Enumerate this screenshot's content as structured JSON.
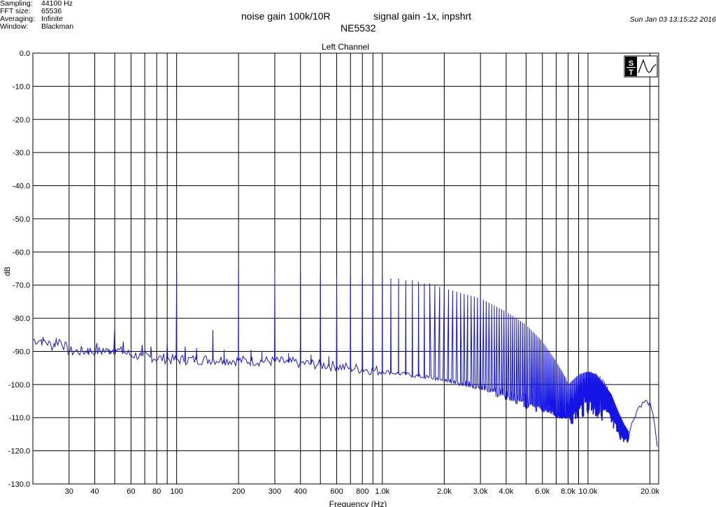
{
  "header": {
    "info": [
      {
        "key": "Sampling:",
        "value": "44100 Hz"
      },
      {
        "key": "FFT size:",
        "value": "65536"
      },
      {
        "key": "Averaging:",
        "value": "Infinite"
      },
      {
        "key": "Window:",
        "value": "Blackman"
      }
    ],
    "title_left": "noise gain 100k/10R",
    "title_center": "NE5532",
    "title_right": "signal gain -1x, inpshrt",
    "timestamp": "Sun Jan 03 13:15:22 2016"
  },
  "colors": {
    "trace": "#1414e6",
    "grid": "#000000",
    "background": "#ffffff"
  },
  "logo": {
    "letters": "S T",
    "icon": "st-logo-icon"
  },
  "chart_data": {
    "type": "line",
    "title": "Left Channel",
    "xlabel": "Frequency (Hz)",
    "ylabel": "dB",
    "xscale": "log",
    "xlim": [
      20,
      22050
    ],
    "ylim": [
      -130,
      0
    ],
    "grid": true,
    "yticks": [
      {
        "value": 0,
        "label": "0.0"
      },
      {
        "value": -10,
        "label": "-10.0"
      },
      {
        "value": -20,
        "label": "-20.0"
      },
      {
        "value": -30,
        "label": "-30.0"
      },
      {
        "value": -40,
        "label": "-40.0"
      },
      {
        "value": -50,
        "label": "-50.0"
      },
      {
        "value": -60,
        "label": "-60.0"
      },
      {
        "value": -70,
        "label": "-70.0"
      },
      {
        "value": -80,
        "label": "-80.0"
      },
      {
        "value": -90,
        "label": "-90.0"
      },
      {
        "value": -100,
        "label": "-100.0"
      },
      {
        "value": -110,
        "label": "-110.0"
      },
      {
        "value": -120,
        "label": "-120.0"
      },
      {
        "value": -130,
        "label": "-130.0"
      }
    ],
    "xticks": [
      {
        "value": 30,
        "label": "30"
      },
      {
        "value": 40,
        "label": "40"
      },
      {
        "value": 60,
        "label": "60"
      },
      {
        "value": 80,
        "label": "80"
      },
      {
        "value": 100,
        "label": "100"
      },
      {
        "value": 200,
        "label": "200"
      },
      {
        "value": 300,
        "label": "300"
      },
      {
        "value": 400,
        "label": "400"
      },
      {
        "value": 600,
        "label": "600"
      },
      {
        "value": 800,
        "label": "800"
      },
      {
        "value": 1000,
        "label": "1.0k"
      },
      {
        "value": 2000,
        "label": "2.0k"
      },
      {
        "value": 3000,
        "label": "3.0k"
      },
      {
        "value": 4000,
        "label": "4.0k"
      },
      {
        "value": 6000,
        "label": "6.0k"
      },
      {
        "value": 8000,
        "label": "8.0k"
      },
      {
        "value": 10000,
        "label": "10.0k"
      },
      {
        "value": 20000,
        "label": "20.0k"
      }
    ],
    "xgrid": [
      20,
      30,
      40,
      50,
      60,
      70,
      80,
      90,
      100,
      200,
      300,
      400,
      500,
      600,
      700,
      800,
      900,
      1000,
      2000,
      3000,
      4000,
      5000,
      6000,
      7000,
      8000,
      9000,
      10000,
      20000
    ],
    "series": [
      {
        "baseline": [
          [
            20,
            -86.5
          ],
          [
            23,
            -87
          ],
          [
            25,
            -88.5
          ],
          [
            27,
            -86.5
          ],
          [
            30,
            -90
          ],
          [
            35,
            -90
          ],
          [
            40,
            -90
          ],
          [
            45,
            -90
          ],
          [
            50,
            -89.5
          ],
          [
            60,
            -91
          ],
          [
            70,
            -91.5
          ],
          [
            80,
            -92
          ],
          [
            100,
            -92.5
          ],
          [
            150,
            -92.5
          ],
          [
            200,
            -92.8
          ],
          [
            300,
            -93
          ],
          [
            400,
            -93.5
          ],
          [
            500,
            -94
          ],
          [
            600,
            -94.5
          ],
          [
            700,
            -95
          ],
          [
            800,
            -95.3
          ],
          [
            1000,
            -96
          ],
          [
            1500,
            -97.5
          ],
          [
            2000,
            -98.5
          ],
          [
            3000,
            -100
          ],
          [
            4000,
            -101.5
          ],
          [
            5000,
            -103.5
          ],
          [
            6000,
            -105.5
          ],
          [
            7000,
            -107.5
          ],
          [
            7800,
            -109
          ],
          [
            8000,
            -106
          ],
          [
            9000,
            -100
          ],
          [
            10000,
            -96.5
          ],
          [
            11000,
            -97
          ],
          [
            12000,
            -99
          ],
          [
            13000,
            -104
          ],
          [
            14000,
            -109
          ],
          [
            15000,
            -113
          ],
          [
            15700,
            -115
          ],
          [
            16300,
            -112
          ],
          [
            17500,
            -107
          ],
          [
            19000,
            -105
          ],
          [
            20000,
            -106
          ],
          [
            21000,
            -111
          ],
          [
            22050,
            -122
          ]
        ],
        "peaks": [
          {
            "f": 50,
            "db": -82.5
          },
          {
            "f": 100,
            "db": -66
          },
          {
            "f": 150,
            "db": -83.5
          },
          {
            "f": 200,
            "db": -66
          },
          {
            "f": 300,
            "db": -66
          },
          {
            "f": 400,
            "db": -66.5
          },
          {
            "f": 500,
            "db": -66.5
          },
          {
            "f": 600,
            "db": -67
          },
          {
            "f": 700,
            "db": -67
          },
          {
            "f": 800,
            "db": -67
          },
          {
            "f": 900,
            "db": -67.5
          },
          {
            "f": 1000,
            "db": -67.5
          },
          {
            "f": 1100,
            "db": -68
          },
          {
            "f": 1200,
            "db": -68
          },
          {
            "f": 1300,
            "db": -68.5
          },
          {
            "f": 1400,
            "db": -68.5
          },
          {
            "f": 1500,
            "db": -69
          },
          {
            "f": 1600,
            "db": -69.5
          }
        ],
        "comb_start_hz": 1700,
        "comb_spacing_hz": 100,
        "comb_end_hz": 15700,
        "comb_envelope": [
          [
            1700,
            -69.5
          ],
          [
            2000,
            -71
          ],
          [
            3000,
            -74
          ],
          [
            4000,
            -78
          ],
          [
            5000,
            -82
          ],
          [
            6000,
            -87
          ],
          [
            7000,
            -93
          ],
          [
            7800,
            -98
          ],
          [
            8000,
            -100
          ],
          [
            9000,
            -97
          ],
          [
            10000,
            -96
          ],
          [
            11000,
            -97
          ],
          [
            12000,
            -100
          ],
          [
            13000,
            -103
          ],
          [
            14000,
            -108
          ],
          [
            15000,
            -112
          ],
          [
            15700,
            -114
          ]
        ],
        "comb_floor_offset": [
          [
            1700,
            0
          ],
          [
            5000,
            -4
          ],
          [
            7800,
            -2
          ],
          [
            8500,
            -10
          ],
          [
            11000,
            -14
          ],
          [
            13000,
            -10
          ],
          [
            15700,
            -3
          ]
        ],
        "noise_spikes": [
          [
            22,
            -86.5
          ],
          [
            26,
            -86
          ],
          [
            37,
            -89
          ],
          [
            41,
            -87.5
          ],
          [
            44,
            -89
          ],
          [
            47,
            -89.5
          ],
          [
            55,
            -87
          ],
          [
            68,
            -88
          ],
          [
            75,
            -88.5
          ],
          [
            90,
            -87.5
          ],
          [
            110,
            -88.5
          ],
          [
            125,
            -89
          ],
          [
            170,
            -89.5
          ],
          [
            230,
            -89.5
          ],
          [
            260,
            -90
          ],
          [
            350,
            -90.5
          ],
          [
            450,
            -91
          ],
          [
            550,
            -91.5
          ]
        ]
      }
    ]
  }
}
